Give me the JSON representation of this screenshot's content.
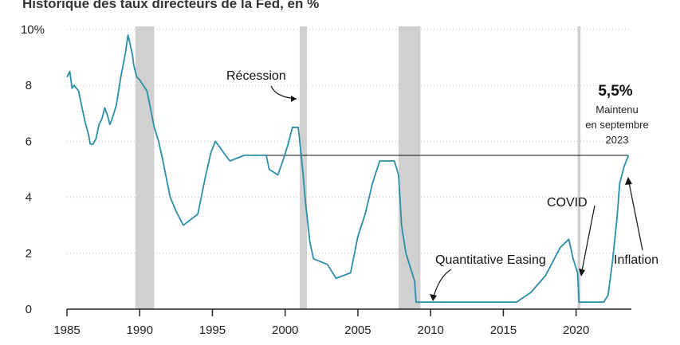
{
  "header_cut_text": "Historique des taux directeurs de la Fed, en %",
  "colors": {
    "line": "#2a8ea8",
    "recession": "#d0d0d0",
    "grid": "#bfbfbf",
    "annotation": "#111111"
  },
  "chart_data": {
    "type": "line",
    "title": "",
    "xlabel": "",
    "ylabel": "",
    "xlim": [
      1985,
      2023.8
    ],
    "ylim": [
      0,
      10
    ],
    "x_ticks": [
      "1985",
      "1990",
      "1995",
      "2000",
      "2005",
      "2010",
      "2015",
      "2020"
    ],
    "y_ticks": [
      "0",
      "2",
      "4",
      "6",
      "8",
      "10%"
    ],
    "grid": "horizontal-dotted",
    "recessions": [
      [
        1989.7,
        1991.0
      ],
      [
        2001.0,
        2001.5
      ],
      [
        2007.8,
        2009.3
      ],
      [
        2020.1,
        2020.3
      ]
    ],
    "series": [
      {
        "x": [
          1985.0,
          1985.2,
          1985.35,
          1985.5,
          1985.8,
          1986.0,
          1986.2,
          1986.35,
          1986.5,
          1986.6,
          1986.8,
          1987.0,
          1987.2,
          1987.4,
          1987.6,
          1987.8,
          1987.95,
          1988.1,
          1988.4,
          1988.7,
          1989.0,
          1989.2,
          1989.5,
          1989.6,
          1989.8,
          1990.0,
          1990.5,
          1991.0,
          1991.3,
          1991.6,
          1991.9,
          1992.1,
          1992.5,
          1992.8,
          1993.0,
          1994.0,
          1994.5,
          1994.9,
          1995.2,
          1995.5,
          1995.9,
          1996.2,
          1997.2,
          1998.0,
          1998.7,
          1998.9,
          1999.5,
          1999.9,
          2000.2,
          2000.5,
          2000.9,
          2001.0,
          2001.2,
          2001.4,
          2001.7,
          2001.95,
          2002.9,
          2003.5,
          2004.5,
          2005.0,
          2005.5,
          2006.0,
          2006.5,
          2007.5,
          2007.8,
          2008.0,
          2008.3,
          2008.9,
          2009.0,
          2015.9,
          2016.9,
          2017.9,
          2018.9,
          2019.5,
          2019.8,
          2020.1,
          2020.2,
          2021.9,
          2022.2,
          2022.5,
          2022.8,
          2023.0,
          2023.3,
          2023.6
        ],
        "y": [
          8.3,
          8.5,
          7.9,
          8.0,
          7.8,
          7.3,
          6.8,
          6.5,
          6.2,
          5.9,
          5.9,
          6.1,
          6.6,
          6.8,
          7.2,
          6.9,
          6.6,
          6.8,
          7.3,
          8.3,
          9.1,
          9.8,
          9.1,
          8.7,
          8.3,
          8.2,
          7.8,
          6.5,
          6.0,
          5.3,
          4.5,
          4.0,
          3.5,
          3.2,
          3.0,
          3.4,
          4.7,
          5.6,
          6.0,
          5.8,
          5.5,
          5.3,
          5.5,
          5.5,
          5.5,
          5.0,
          4.8,
          5.4,
          5.9,
          6.5,
          6.5,
          6.0,
          5.0,
          3.8,
          2.4,
          1.8,
          1.6,
          1.1,
          1.3,
          2.6,
          3.4,
          4.5,
          5.3,
          5.3,
          4.8,
          3.0,
          2.0,
          1.0,
          0.25,
          0.25,
          0.6,
          1.2,
          2.2,
          2.5,
          1.8,
          1.3,
          0.25,
          0.25,
          0.5,
          1.7,
          3.2,
          4.5,
          5.1,
          5.5
        ]
      }
    ],
    "reference_line": {
      "y": 5.5,
      "x_start": 1998.3,
      "x_end": 2023.6
    },
    "annotations": {
      "recession": "Récession",
      "current_value": "5,5%",
      "current_note_1": "Maintenu",
      "current_note_2": "en septembre",
      "current_note_3": "2023",
      "qe": "Quantitative Easing",
      "covid": "COVID",
      "inflation": "Inflation"
    }
  }
}
